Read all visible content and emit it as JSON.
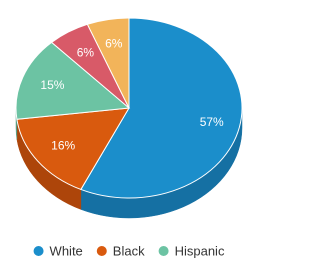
{
  "chart_data": {
    "type": "pie",
    "categories": [
      "White",
      "Black",
      "Hispanic",
      null,
      null
    ],
    "values": [
      57,
      16,
      15,
      6,
      6
    ],
    "value_labels": [
      "57%",
      "16%",
      "15%",
      "6%",
      "6%"
    ],
    "colors": [
      "#1b8ecb",
      "#d95a0e",
      "#6cc3a3",
      "#d85a68",
      "#f2b45a"
    ],
    "side_colors": [
      "#1570a3",
      "#ad450a",
      "#539c82",
      "#ad4653",
      "#c28f47"
    ]
  }
}
